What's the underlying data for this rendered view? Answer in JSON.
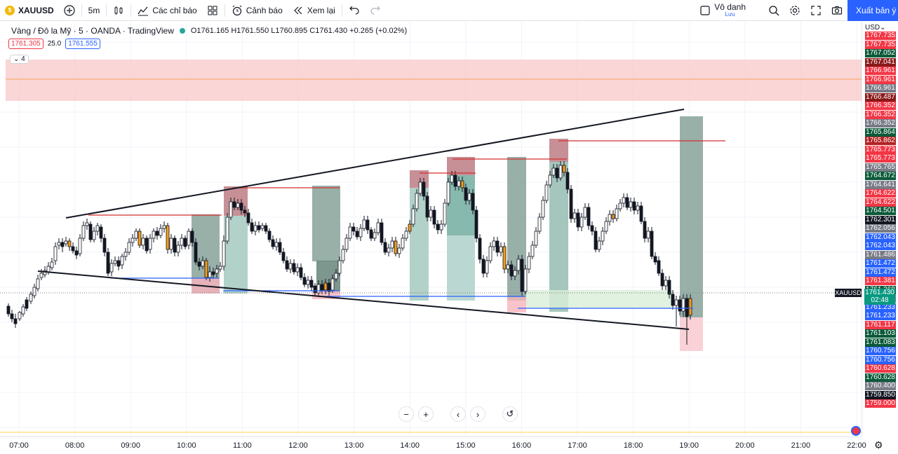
{
  "toolbar": {
    "symbol": "XAUUSD",
    "interval": "5m",
    "indicators": "Các chỉ báo",
    "alert": "Cảnh báo",
    "replay": "Xem lại",
    "layout_name": "Vô danh",
    "layout_status": "Lưu",
    "publish": "Xuất bản ý t"
  },
  "legend": {
    "title": "Vàng / Đô la Mỹ · 5 · OANDA · TradingView",
    "ohlc": "O1761.165 H1761.550 L1760.895 C1761.430 +0.265 (+0.02%)",
    "sell": "1761.305",
    "spread": "25.0",
    "buy": "1761.555",
    "collapsed_count": "4"
  },
  "scale": {
    "currency": "USD",
    "labels": [
      {
        "text": "1767.735",
        "color": "#f23645"
      },
      {
        "text": "1767.735",
        "color": "#f23645"
      },
      {
        "text": "1767.052",
        "color": "#0b5a3a"
      },
      {
        "text": "1767.041",
        "color": "#8b1a1a"
      },
      {
        "text": "1766.961",
        "color": "#f23645"
      },
      {
        "text": "1766.961",
        "color": "#f23645"
      },
      {
        "text": "1766.961",
        "color": "#787b86"
      },
      {
        "text": "1766.487",
        "color": "#8b1a1a"
      },
      {
        "text": "1766.352",
        "color": "#f23645"
      },
      {
        "text": "1766.352",
        "color": "#f23645"
      },
      {
        "text": "1766.352",
        "color": "#787b86"
      },
      {
        "text": "1765.864",
        "color": "#0b5a3a"
      },
      {
        "text": "1765.862",
        "color": "#b22222"
      },
      {
        "text": "1765.773",
        "color": "#f23645"
      },
      {
        "text": "1765.773",
        "color": "#f23645"
      },
      {
        "text": "1765.765",
        "color": "#787b86"
      },
      {
        "text": "1764.672",
        "color": "#0b5a3a"
      },
      {
        "text": "1764.641",
        "color": "#787b86"
      },
      {
        "text": "1764.622",
        "color": "#f23645"
      },
      {
        "text": "1764.622",
        "color": "#f23645"
      },
      {
        "text": "1764.501",
        "color": "#0b5a3a"
      },
      {
        "text": "1762.301",
        "color": "#131722"
      },
      {
        "text": "1762.056",
        "color": "#787b86"
      },
      {
        "text": "1762.043",
        "color": "#2962ff"
      },
      {
        "text": "1762.043",
        "color": "#2962ff"
      },
      {
        "text": "1761.486",
        "color": "#787b86"
      },
      {
        "text": "1761.472",
        "color": "#2962ff"
      },
      {
        "text": "1761.472",
        "color": "#2962ff"
      },
      {
        "text": "1761.381",
        "color": "#f23645"
      },
      {
        "text": "1761.368",
        "color": "#0b5a3a"
      },
      {
        "text": "1761.233",
        "color": "#787b86"
      },
      {
        "text": "1761.233",
        "color": "#2962ff"
      },
      {
        "text": "1761.233",
        "color": "#2962ff"
      },
      {
        "text": "1761.117",
        "color": "#f23645"
      },
      {
        "text": "1761.103",
        "color": "#0b5a3a"
      },
      {
        "text": "1761.083",
        "color": "#0b5a3a"
      },
      {
        "text": "1760.756",
        "color": "#2962ff"
      },
      {
        "text": "1760.756",
        "color": "#2962ff"
      },
      {
        "text": "1760.628",
        "color": "#f23645"
      },
      {
        "text": "1760.628",
        "color": "#0b5a3a"
      },
      {
        "text": "1760.400",
        "color": "#787b86"
      },
      {
        "text": "1759.850",
        "color": "#131722"
      },
      {
        "text": "1759.000",
        "color": "#f23645"
      }
    ],
    "current_symbol": "XAUUSD",
    "current_price": "1761.430",
    "countdown": "02:48"
  },
  "time_axis": [
    "07:00",
    "08:00",
    "09:00",
    "10:00",
    "11:00",
    "12:00",
    "13:00",
    "14:00",
    "15:00",
    "16:00",
    "17:00",
    "18:00",
    "19:00",
    "20:00",
    "21:00",
    "22:00"
  ]
}
